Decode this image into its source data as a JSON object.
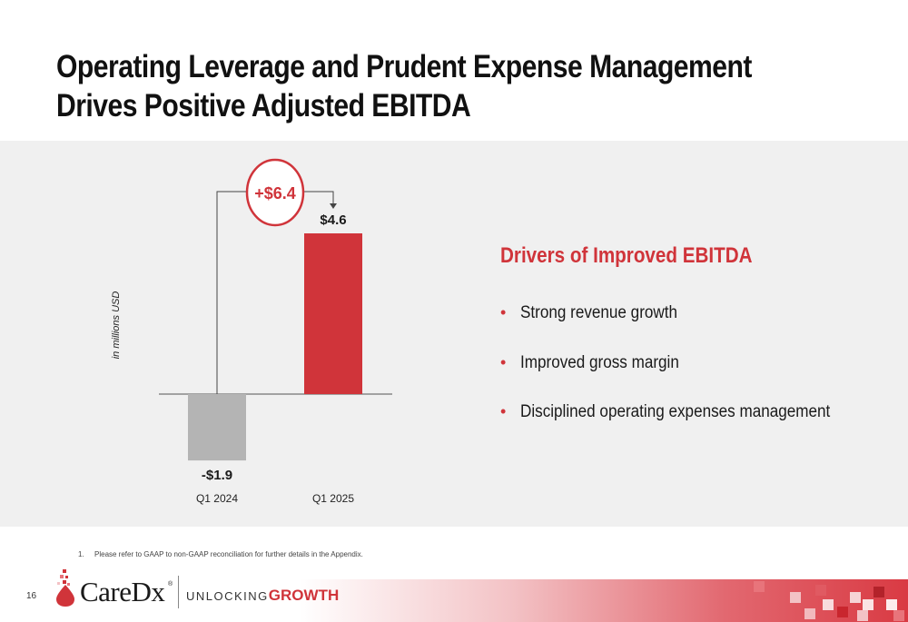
{
  "slide": {
    "title": "Operating Leverage and Prudent Expense Management Drives Positive Adjusted EBITDA",
    "page_number": "16",
    "footnote_number": "1.",
    "footnote": "Please refer to GAAP to non-GAAP reconciliation for further details in the Appendix."
  },
  "drivers": {
    "title": "Drivers of Improved EBITDA",
    "bullet_glyph": "•",
    "items": [
      "Strong revenue growth",
      "Improved gross margin",
      "Disciplined operating expenses management"
    ]
  },
  "brand": {
    "logo_text": "CareDx",
    "registered_mark": "®",
    "tagline_part1": "UNLOCKING",
    "tagline_part2": "GROWTH",
    "accent_color": "#d0343a"
  },
  "chart_data": {
    "type": "bar",
    "ylabel": "in millions USD",
    "categories": [
      "Q1 2024",
      "Q1 2025"
    ],
    "values": [
      -1.9,
      4.6
    ],
    "data_labels": [
      "-$1.9",
      "$4.6"
    ],
    "colors": [
      "#b4b4b4",
      "#d0343a"
    ],
    "change_label": "+$6.4",
    "change_value": 6.4,
    "ylim": [
      -2.2,
      5.3
    ]
  }
}
